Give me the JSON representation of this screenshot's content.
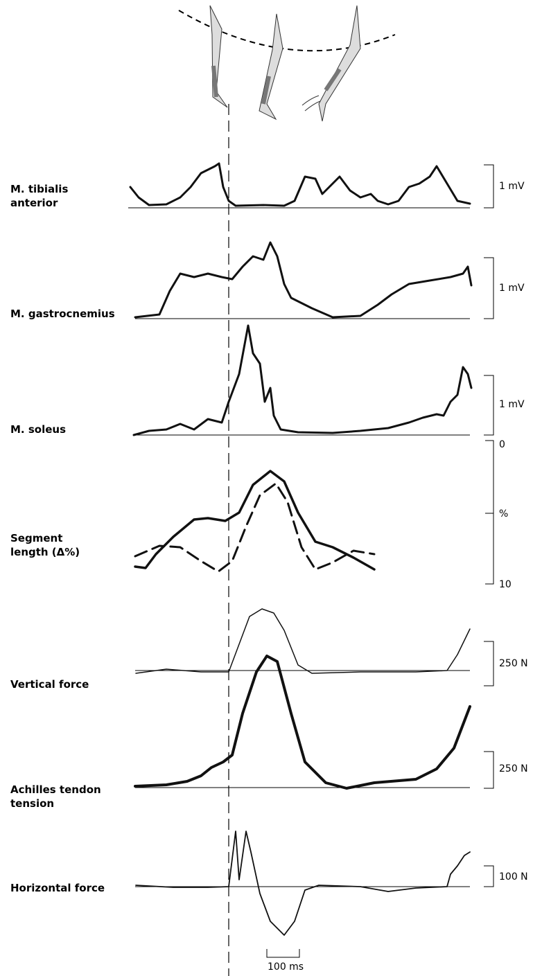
{
  "labels": {
    "tibialis": [
      "M. tibialis",
      "anterior"
    ],
    "gastrocnemius": "M. gastrocnemius",
    "soleus": "M. soleus",
    "segment": [
      "Segment",
      "length (Δ%)"
    ],
    "vertical": "Vertical force",
    "achilles": [
      "Achilles tendon",
      "tension"
    ],
    "horizontal": "Horizontal force"
  },
  "scales": {
    "tibialis": "1 mV",
    "gastrocnemius": "1 mV",
    "soleus": "1 mV",
    "segment": [
      "0",
      "%",
      "10"
    ],
    "vertical": "250 N",
    "achilles": "250 N",
    "horizontal": "100 N",
    "time": "100 ms"
  }
}
